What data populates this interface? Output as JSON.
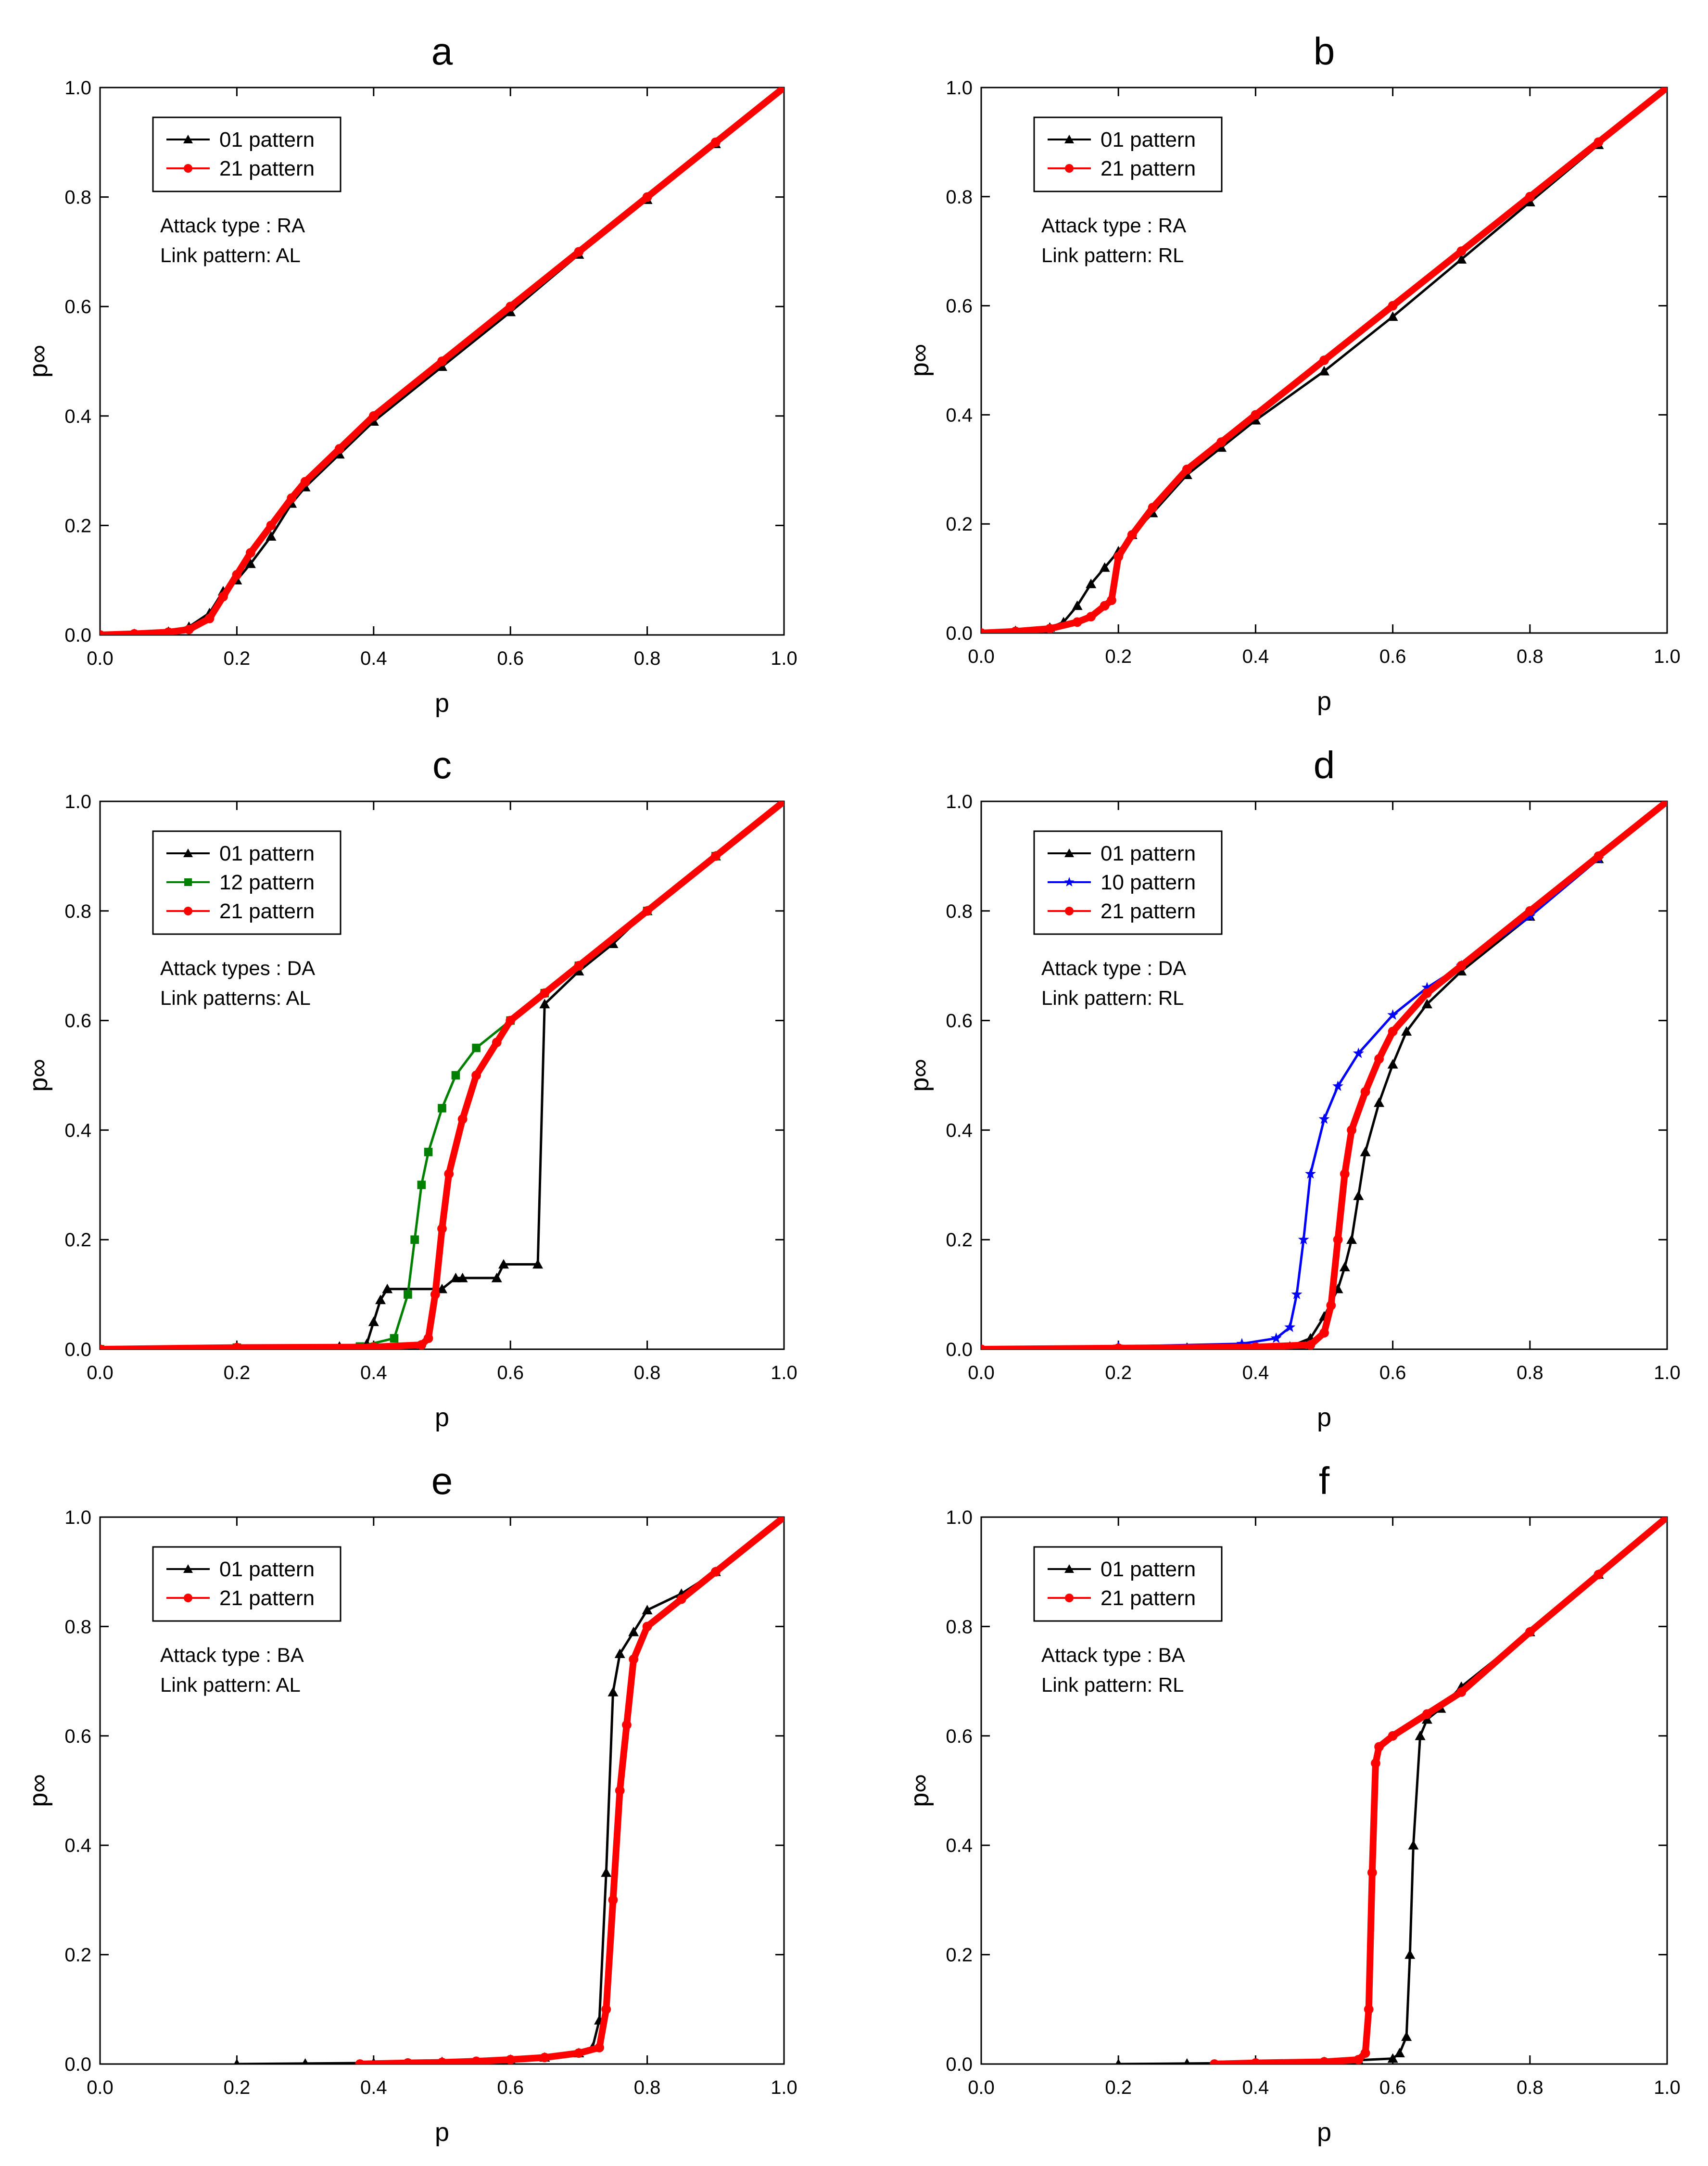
{
  "chart_data": [
    {
      "id": "a",
      "type": "line",
      "title": "a",
      "xlabel": "p",
      "ylabel": "p∞",
      "xlim": [
        0.0,
        1.0
      ],
      "ylim": [
        0.0,
        1.0
      ],
      "xticks": [
        "0.0",
        "0.2",
        "0.4",
        "0.6",
        "0.8",
        "1.0"
      ],
      "yticks": [
        "0.0",
        "0.2",
        "0.4",
        "0.6",
        "0.8",
        "1.0"
      ],
      "grid": false,
      "legend_position": "top-left",
      "annotation": [
        "Attack type : RA",
        "Link pattern: AL"
      ],
      "series": [
        {
          "name": "01 pattern",
          "color": "#000000",
          "marker": "triangle",
          "x": [
            0,
            0.05,
            0.1,
            0.13,
            0.16,
            0.18,
            0.2,
            0.22,
            0.25,
            0.28,
            0.3,
            0.35,
            0.4,
            0.5,
            0.6,
            0.7,
            0.8,
            0.9,
            1.0
          ],
          "y": [
            0,
            0.002,
            0.006,
            0.015,
            0.04,
            0.08,
            0.1,
            0.13,
            0.18,
            0.24,
            0.27,
            0.33,
            0.39,
            0.49,
            0.59,
            0.695,
            0.795,
            0.897,
            1.0
          ]
        },
        {
          "name": "21 pattern",
          "color": "#ff0000",
          "marker": "circle",
          "x": [
            0,
            0.05,
            0.1,
            0.13,
            0.16,
            0.18,
            0.2,
            0.22,
            0.25,
            0.28,
            0.3,
            0.35,
            0.4,
            0.5,
            0.6,
            0.7,
            0.8,
            0.9,
            1.0
          ],
          "y": [
            0,
            0.002,
            0.005,
            0.01,
            0.03,
            0.07,
            0.11,
            0.15,
            0.2,
            0.25,
            0.28,
            0.34,
            0.4,
            0.5,
            0.6,
            0.7,
            0.8,
            0.9,
            1.0
          ]
        }
      ]
    },
    {
      "id": "b",
      "type": "line",
      "title": "b",
      "xlabel": "p",
      "ylabel": "p∞",
      "xlim": [
        0.0,
        1.0
      ],
      "ylim": [
        0.0,
        1.0
      ],
      "xticks": [
        "0.0",
        "0.2",
        "0.4",
        "0.6",
        "0.8",
        "1.0"
      ],
      "yticks": [
        "0.0",
        "0.2",
        "0.4",
        "0.6",
        "0.8",
        "1.0"
      ],
      "grid": false,
      "legend_position": "top-left",
      "annotation": [
        "Attack type : RA",
        "Link pattern: RL"
      ],
      "series": [
        {
          "name": "01 pattern",
          "color": "#000000",
          "marker": "triangle",
          "x": [
            0,
            0.05,
            0.1,
            0.12,
            0.14,
            0.16,
            0.18,
            0.2,
            0.22,
            0.25,
            0.3,
            0.35,
            0.4,
            0.5,
            0.6,
            0.7,
            0.8,
            0.9,
            1.0
          ],
          "y": [
            0,
            0.004,
            0.01,
            0.02,
            0.05,
            0.09,
            0.12,
            0.15,
            0.18,
            0.22,
            0.29,
            0.34,
            0.39,
            0.48,
            0.58,
            0.685,
            0.79,
            0.895,
            1.0
          ]
        },
        {
          "name": "21 pattern",
          "color": "#ff0000",
          "marker": "circle",
          "x": [
            0,
            0.05,
            0.1,
            0.14,
            0.16,
            0.18,
            0.19,
            0.2,
            0.22,
            0.25,
            0.3,
            0.35,
            0.4,
            0.5,
            0.6,
            0.7,
            0.8,
            0.9,
            1.0
          ],
          "y": [
            0,
            0.003,
            0.008,
            0.02,
            0.03,
            0.05,
            0.06,
            0.14,
            0.18,
            0.23,
            0.3,
            0.35,
            0.4,
            0.5,
            0.6,
            0.7,
            0.8,
            0.9,
            1.0
          ]
        }
      ]
    },
    {
      "id": "c",
      "type": "line",
      "title": "c",
      "xlabel": "p",
      "ylabel": "p∞",
      "xlim": [
        0.0,
        1.0
      ],
      "ylim": [
        0.0,
        1.0
      ],
      "xticks": [
        "0.0",
        "0.2",
        "0.4",
        "0.6",
        "0.8",
        "1.0"
      ],
      "yticks": [
        "0.0",
        "0.2",
        "0.4",
        "0.6",
        "0.8",
        "1.0"
      ],
      "grid": false,
      "legend_position": "top-left",
      "annotation": [
        "Attack types : DA",
        "Link patterns: AL"
      ],
      "series": [
        {
          "name": "01 pattern",
          "color": "#000000",
          "marker": "triangle",
          "x": [
            0,
            0.2,
            0.35,
            0.39,
            0.4,
            0.41,
            0.42,
            0.5,
            0.52,
            0.53,
            0.58,
            0.59,
            0.64,
            0.65,
            0.7,
            0.75,
            0.8,
            0.9,
            1.0
          ],
          "y": [
            0,
            0.003,
            0.005,
            0.01,
            0.05,
            0.09,
            0.11,
            0.11,
            0.13,
            0.13,
            0.13,
            0.155,
            0.155,
            0.63,
            0.69,
            0.74,
            0.8,
            0.9,
            1.0
          ]
        },
        {
          "name": "12 pattern",
          "color": "#008000",
          "marker": "square",
          "x": [
            0,
            0.2,
            0.38,
            0.43,
            0.45,
            0.46,
            0.47,
            0.48,
            0.5,
            0.52,
            0.55,
            0.6,
            0.65,
            0.7,
            0.8,
            0.9,
            1.0
          ],
          "y": [
            0,
            0.003,
            0.005,
            0.02,
            0.1,
            0.2,
            0.3,
            0.36,
            0.44,
            0.5,
            0.55,
            0.6,
            0.65,
            0.7,
            0.8,
            0.9,
            1.0
          ]
        },
        {
          "name": "21 pattern",
          "color": "#ff0000",
          "marker": "circle",
          "x": [
            0,
            0.2,
            0.4,
            0.47,
            0.48,
            0.49,
            0.5,
            0.51,
            0.53,
            0.55,
            0.58,
            0.6,
            0.65,
            0.7,
            0.8,
            0.9,
            1.0
          ],
          "y": [
            0,
            0.003,
            0.004,
            0.008,
            0.02,
            0.1,
            0.22,
            0.32,
            0.42,
            0.5,
            0.56,
            0.6,
            0.65,
            0.7,
            0.8,
            0.9,
            1.0
          ]
        }
      ]
    },
    {
      "id": "d",
      "type": "line",
      "title": "d",
      "xlabel": "p",
      "ylabel": "p∞",
      "xlim": [
        0.0,
        1.0
      ],
      "ylim": [
        0.0,
        1.0
      ],
      "xticks": [
        "0.0",
        "0.2",
        "0.4",
        "0.6",
        "0.8",
        "1.0"
      ],
      "yticks": [
        "0.0",
        "0.2",
        "0.4",
        "0.6",
        "0.8",
        "1.0"
      ],
      "grid": false,
      "legend_position": "top-left",
      "annotation": [
        "Attack type : DA",
        "Link pattern: RL"
      ],
      "series": [
        {
          "name": "01 pattern",
          "color": "#000000",
          "marker": "triangle",
          "x": [
            0,
            0.3,
            0.45,
            0.48,
            0.5,
            0.52,
            0.53,
            0.54,
            0.55,
            0.56,
            0.58,
            0.6,
            0.62,
            0.65,
            0.7,
            0.8,
            0.9,
            1.0
          ],
          "y": [
            0,
            0.003,
            0.005,
            0.02,
            0.06,
            0.11,
            0.15,
            0.2,
            0.28,
            0.36,
            0.45,
            0.52,
            0.58,
            0.63,
            0.69,
            0.79,
            0.895,
            1.0
          ]
        },
        {
          "name": "10 pattern",
          "color": "#0000ff",
          "marker": "star",
          "x": [
            0,
            0.2,
            0.38,
            0.43,
            0.45,
            0.46,
            0.47,
            0.48,
            0.5,
            0.52,
            0.55,
            0.6,
            0.65,
            0.7,
            0.8,
            0.9,
            1.0
          ],
          "y": [
            0,
            0.005,
            0.01,
            0.02,
            0.04,
            0.1,
            0.2,
            0.32,
            0.42,
            0.48,
            0.54,
            0.61,
            0.66,
            0.7,
            0.79,
            0.895,
            1.0
          ]
        },
        {
          "name": "21 pattern",
          "color": "#ff0000",
          "marker": "circle",
          "x": [
            0,
            0.2,
            0.4,
            0.48,
            0.5,
            0.51,
            0.52,
            0.53,
            0.54,
            0.56,
            0.58,
            0.6,
            0.65,
            0.7,
            0.8,
            0.9,
            1.0
          ],
          "y": [
            0,
            0.002,
            0.004,
            0.008,
            0.03,
            0.08,
            0.2,
            0.32,
            0.4,
            0.47,
            0.53,
            0.58,
            0.65,
            0.7,
            0.8,
            0.9,
            1.0
          ]
        }
      ]
    },
    {
      "id": "e",
      "type": "line",
      "title": "e",
      "xlabel": "p",
      "ylabel": "p∞",
      "xlim": [
        0.0,
        1.0
      ],
      "ylim": [
        0.0,
        1.0
      ],
      "xticks": [
        "0.0",
        "0.2",
        "0.4",
        "0.6",
        "0.8",
        "1.0"
      ],
      "yticks": [
        "0.0",
        "0.2",
        "0.4",
        "0.6",
        "0.8",
        "1.0"
      ],
      "grid": false,
      "legend_position": "top-left",
      "annotation": [
        "Attack type : BA",
        "Link pattern: AL"
      ],
      "series": [
        {
          "name": "01 pattern",
          "color": "#000000",
          "marker": "triangle",
          "x": [
            0.2,
            0.3,
            0.4,
            0.5,
            0.6,
            0.65,
            0.7,
            0.72,
            0.73,
            0.74,
            0.75,
            0.76,
            0.78,
            0.8,
            0.85,
            0.9,
            1.0
          ],
          "y": [
            0,
            0.001,
            0.002,
            0.004,
            0.008,
            0.012,
            0.02,
            0.03,
            0.08,
            0.35,
            0.68,
            0.75,
            0.79,
            0.83,
            0.86,
            0.9,
            1.0
          ]
        },
        {
          "name": "21 pattern",
          "color": "#ff0000",
          "marker": "circle",
          "x": [
            0.38,
            0.45,
            0.5,
            0.55,
            0.6,
            0.65,
            0.7,
            0.73,
            0.74,
            0.75,
            0.76,
            0.77,
            0.78,
            0.8,
            0.85,
            0.9,
            1.0
          ],
          "y": [
            0,
            0.002,
            0.003,
            0.005,
            0.008,
            0.012,
            0.02,
            0.03,
            0.1,
            0.3,
            0.5,
            0.62,
            0.74,
            0.8,
            0.85,
            0.9,
            1.0
          ]
        }
      ]
    },
    {
      "id": "f",
      "type": "line",
      "title": "f",
      "xlabel": "p",
      "ylabel": "p∞",
      "xlim": [
        0.0,
        1.0
      ],
      "ylim": [
        0.0,
        1.0
      ],
      "xticks": [
        "0.0",
        "0.2",
        "0.4",
        "0.6",
        "0.8",
        "1.0"
      ],
      "yticks": [
        "0.0",
        "0.2",
        "0.4",
        "0.6",
        "0.8",
        "1.0"
      ],
      "grid": false,
      "legend_position": "top-left",
      "annotation": [
        "Attack type : BA",
        "Link pattern: RL"
      ],
      "series": [
        {
          "name": "01 pattern",
          "color": "#000000",
          "marker": "triangle",
          "x": [
            0.2,
            0.3,
            0.4,
            0.5,
            0.55,
            0.6,
            0.61,
            0.62,
            0.625,
            0.63,
            0.64,
            0.65,
            0.67,
            0.7,
            0.8,
            0.9,
            1.0
          ],
          "y": [
            0,
            0.001,
            0.002,
            0.004,
            0.007,
            0.01,
            0.02,
            0.05,
            0.2,
            0.4,
            0.6,
            0.63,
            0.65,
            0.69,
            0.79,
            0.895,
            1.0
          ]
        },
        {
          "name": "21 pattern",
          "color": "#ff0000",
          "marker": "circle",
          "x": [
            0.34,
            0.4,
            0.5,
            0.55,
            0.56,
            0.565,
            0.57,
            0.575,
            0.58,
            0.6,
            0.65,
            0.7,
            0.8,
            0.9,
            1.0
          ],
          "y": [
            0,
            0.002,
            0.004,
            0.008,
            0.02,
            0.1,
            0.35,
            0.55,
            0.58,
            0.6,
            0.64,
            0.68,
            0.79,
            0.895,
            1.0
          ]
        }
      ]
    }
  ]
}
